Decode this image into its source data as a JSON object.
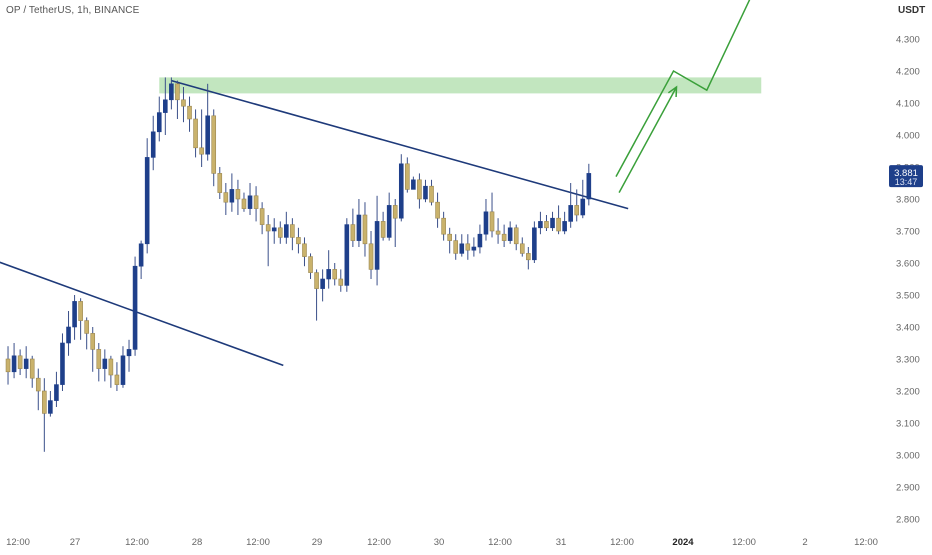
{
  "header": {
    "title": "OP / TetherUS, 1h, BINANCE"
  },
  "price_scale": {
    "unit": "USDT",
    "current_price": "3.881",
    "countdown": "13:47"
  },
  "colors": {
    "up": "#1e3f8a",
    "down": "#c9b26c",
    "wick": "#3a4f8a",
    "trendline": "#1e3a7a",
    "zone": "#8fd18a",
    "arrow": "#3aa03a",
    "badge": "#1e3f8a"
  },
  "chart_data": {
    "type": "candlestick",
    "symbol": "OP / TetherUS",
    "interval": "1h",
    "exchange": "BINANCE",
    "ylim": [
      2.75,
      4.45
    ],
    "y_ticks": [
      "2.800",
      "2.900",
      "3.000",
      "3.100",
      "3.200",
      "3.300",
      "3.400",
      "3.500",
      "3.600",
      "3.700",
      "3.800",
      "3.900",
      "4.000",
      "4.100",
      "4.200",
      "4.300"
    ],
    "x_ticks": [
      "12:00",
      "27",
      "12:00",
      "28",
      "12:00",
      "29",
      "12:00",
      "30",
      "12:00",
      "31",
      "12:00",
      "2024",
      "12:00",
      "2",
      "12:00"
    ],
    "x_ticks_bold": [
      "2024"
    ],
    "x_range_hours": [
      0,
      130
    ],
    "candles": [
      [
        3.3,
        3.26,
        3.34,
        3.22
      ],
      [
        3.26,
        3.31,
        3.35,
        3.24
      ],
      [
        3.31,
        3.27,
        3.33,
        3.25
      ],
      [
        3.27,
        3.3,
        3.34,
        3.24
      ],
      [
        3.3,
        3.24,
        3.31,
        3.21
      ],
      [
        3.24,
        3.2,
        3.27,
        3.14
      ],
      [
        3.2,
        3.13,
        3.24,
        3.01
      ],
      [
        3.13,
        3.17,
        3.2,
        3.12
      ],
      [
        3.17,
        3.22,
        3.26,
        3.15
      ],
      [
        3.22,
        3.35,
        3.38,
        3.2
      ],
      [
        3.35,
        3.4,
        3.45,
        3.31
      ],
      [
        3.4,
        3.48,
        3.5,
        3.36
      ],
      [
        3.48,
        3.42,
        3.49,
        3.36
      ],
      [
        3.42,
        3.38,
        3.43,
        3.33
      ],
      [
        3.38,
        3.33,
        3.4,
        3.26
      ],
      [
        3.33,
        3.27,
        3.35,
        3.23
      ],
      [
        3.27,
        3.3,
        3.33,
        3.23
      ],
      [
        3.3,
        3.25,
        3.31,
        3.21
      ],
      [
        3.25,
        3.22,
        3.29,
        3.2
      ],
      [
        3.22,
        3.31,
        3.34,
        3.21
      ],
      [
        3.31,
        3.33,
        3.36,
        3.26
      ],
      [
        3.33,
        3.59,
        3.62,
        3.31
      ],
      [
        3.59,
        3.66,
        3.67,
        3.55
      ],
      [
        3.66,
        3.93,
        3.99,
        3.63
      ],
      [
        3.93,
        4.01,
        4.06,
        3.89
      ],
      [
        4.01,
        4.07,
        4.12,
        3.98
      ],
      [
        4.07,
        4.11,
        4.18,
        4.0
      ],
      [
        4.11,
        4.16,
        4.18,
        4.08
      ],
      [
        4.16,
        4.11,
        4.17,
        4.05
      ],
      [
        4.11,
        4.09,
        4.15,
        4.04
      ],
      [
        4.09,
        4.05,
        4.12,
        4.01
      ],
      [
        4.05,
        3.96,
        4.08,
        3.93
      ],
      [
        3.96,
        3.94,
        4.08,
        3.9
      ],
      [
        3.94,
        4.06,
        4.16,
        3.92
      ],
      [
        4.06,
        3.88,
        4.08,
        3.84
      ],
      [
        3.88,
        3.82,
        3.9,
        3.8
      ],
      [
        3.82,
        3.79,
        3.85,
        3.75
      ],
      [
        3.79,
        3.83,
        3.88,
        3.76
      ],
      [
        3.83,
        3.8,
        3.86,
        3.75
      ],
      [
        3.8,
        3.77,
        3.82,
        3.76
      ],
      [
        3.77,
        3.81,
        3.85,
        3.75
      ],
      [
        3.81,
        3.77,
        3.84,
        3.73
      ],
      [
        3.77,
        3.72,
        3.79,
        3.69
      ],
      [
        3.72,
        3.7,
        3.75,
        3.59
      ],
      [
        3.7,
        3.71,
        3.74,
        3.66
      ],
      [
        3.71,
        3.68,
        3.73,
        3.66
      ],
      [
        3.68,
        3.72,
        3.76,
        3.66
      ],
      [
        3.72,
        3.68,
        3.74,
        3.64
      ],
      [
        3.68,
        3.66,
        3.71,
        3.63
      ],
      [
        3.66,
        3.62,
        3.68,
        3.59
      ],
      [
        3.62,
        3.57,
        3.63,
        3.55
      ],
      [
        3.57,
        3.52,
        3.58,
        3.42
      ],
      [
        3.52,
        3.55,
        3.58,
        3.48
      ],
      [
        3.55,
        3.58,
        3.64,
        3.52
      ],
      [
        3.58,
        3.55,
        3.6,
        3.53
      ],
      [
        3.55,
        3.53,
        3.58,
        3.51
      ],
      [
        3.53,
        3.72,
        3.74,
        3.51
      ],
      [
        3.72,
        3.67,
        3.77,
        3.65
      ],
      [
        3.67,
        3.75,
        3.8,
        3.65
      ],
      [
        3.75,
        3.66,
        3.79,
        3.62
      ],
      [
        3.66,
        3.58,
        3.7,
        3.55
      ],
      [
        3.58,
        3.73,
        3.81,
        3.53
      ],
      [
        3.73,
        3.68,
        3.76,
        3.67
      ],
      [
        3.68,
        3.78,
        3.82,
        3.67
      ],
      [
        3.78,
        3.74,
        3.8,
        3.65
      ],
      [
        3.74,
        3.91,
        3.94,
        3.73
      ],
      [
        3.91,
        3.83,
        3.93,
        3.82
      ],
      [
        3.83,
        3.86,
        3.87,
        3.84
      ],
      [
        3.86,
        3.8,
        3.88,
        3.77
      ],
      [
        3.8,
        3.84,
        3.86,
        3.79
      ],
      [
        3.84,
        3.79,
        3.86,
        3.78
      ],
      [
        3.79,
        3.74,
        3.82,
        3.71
      ],
      [
        3.74,
        3.69,
        3.76,
        3.67
      ],
      [
        3.69,
        3.67,
        3.71,
        3.63
      ],
      [
        3.67,
        3.63,
        3.69,
        3.61
      ],
      [
        3.63,
        3.66,
        3.69,
        3.62
      ],
      [
        3.66,
        3.64,
        3.69,
        3.61
      ],
      [
        3.64,
        3.65,
        3.68,
        3.62
      ],
      [
        3.65,
        3.69,
        3.72,
        3.63
      ],
      [
        3.69,
        3.76,
        3.8,
        3.67
      ],
      [
        3.76,
        3.7,
        3.82,
        3.68
      ],
      [
        3.7,
        3.69,
        3.74,
        3.66
      ],
      [
        3.69,
        3.67,
        3.72,
        3.65
      ],
      [
        3.67,
        3.71,
        3.73,
        3.66
      ],
      [
        3.71,
        3.66,
        3.72,
        3.64
      ],
      [
        3.66,
        3.63,
        3.68,
        3.62
      ],
      [
        3.63,
        3.61,
        3.65,
        3.58
      ],
      [
        3.61,
        3.71,
        3.73,
        3.6
      ],
      [
        3.71,
        3.73,
        3.76,
        3.69
      ],
      [
        3.73,
        3.71,
        3.75,
        3.7
      ],
      [
        3.71,
        3.74,
        3.76,
        3.7
      ],
      [
        3.74,
        3.7,
        3.78,
        3.69
      ],
      [
        3.7,
        3.73,
        3.76,
        3.69
      ],
      [
        3.73,
        3.78,
        3.85,
        3.71
      ],
      [
        3.78,
        3.75,
        3.83,
        3.73
      ],
      [
        3.75,
        3.8,
        3.86,
        3.74
      ],
      [
        3.8,
        3.88,
        3.91,
        3.78
      ]
    ],
    "lines": [
      {
        "name": "descending-trendline",
        "points": [
          [
            27.5,
            4.17
          ],
          [
            103,
            3.77
          ]
        ]
      },
      {
        "name": "lower-trendline",
        "points": [
          [
            -2,
            3.61
          ],
          [
            46,
            3.28
          ]
        ]
      }
    ],
    "zone": {
      "y_from": 4.13,
      "y_to": 4.18,
      "x_from": 25.5,
      "x_to": 125
    },
    "arrows": [
      {
        "name": "projection-arrow-1",
        "points": [
          [
            101,
            3.87
          ],
          [
            110.5,
            4.2
          ],
          [
            116,
            4.14
          ],
          [
            125,
            4.5
          ]
        ]
      },
      {
        "name": "projection-arrow-2",
        "points": [
          [
            101.5,
            3.82
          ],
          [
            111,
            4.15
          ]
        ]
      }
    ],
    "last_price": 3.881
  }
}
